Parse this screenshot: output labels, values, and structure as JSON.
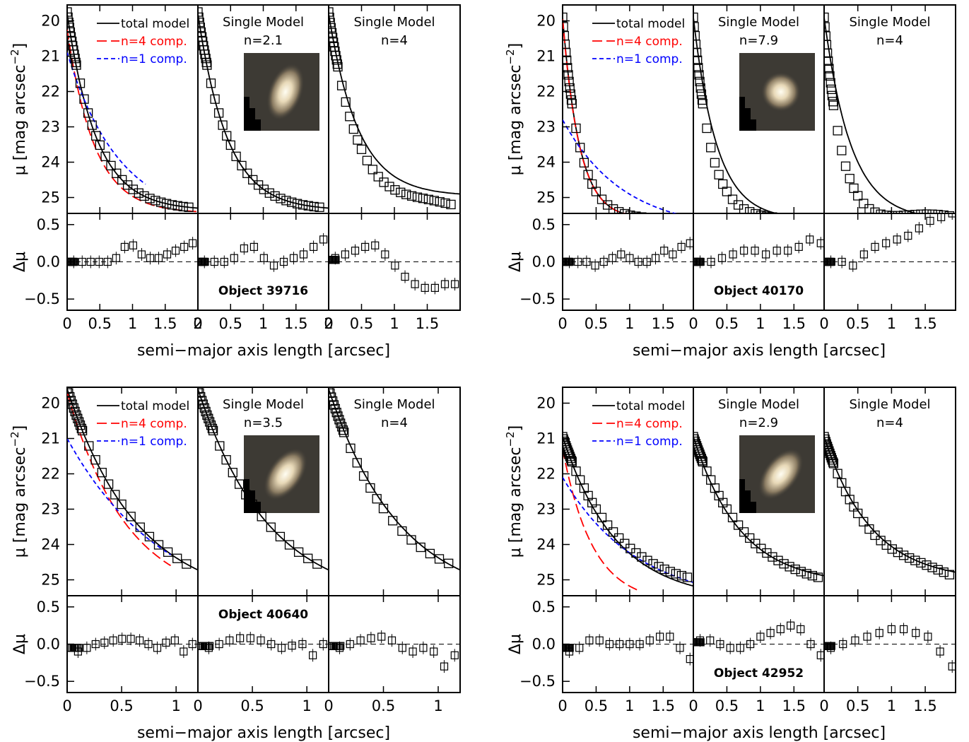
{
  "chart_data": [
    {
      "type": "scatter",
      "object_label": "Object 39716",
      "sersic_n": "2.1",
      "x_ticks": [
        [
          "0",
          "0.5",
          "1",
          "1.5",
          "2"
        ],
        [
          "0",
          "0.5",
          "1",
          "1.5",
          "2"
        ],
        [
          "0",
          "0.5",
          "1",
          "1.5"
        ]
      ],
      "xlim": [
        0,
        2.0
      ],
      "two_component": {
        "series": [
          {
            "name": "total model",
            "color": "#000000",
            "style": "solid",
            "start": 19.8,
            "end": 25.3,
            "bend": 0.45
          },
          {
            "name": "n=4 comp.",
            "color": "#ff0000",
            "style": "long-dash",
            "start": 20.25,
            "end": 25.4,
            "bend": 0.42
          },
          {
            "name": "n=1 comp.",
            "color": "#0000ff",
            "style": "short-dash",
            "start": 20.9,
            "end": 25.3,
            "bend": 0.8,
            "xmax": 1.2
          }
        ]
      },
      "single_fit": {
        "start": 19.8,
        "end": 25.3,
        "bend": 0.45
      },
      "single_n4": {
        "start": 19.8,
        "end": 24.9,
        "bend": 0.45
      },
      "data": {
        "start": 19.75,
        "end": 25.3,
        "bend": 0.45,
        "xmax": 1.92
      },
      "residuals": [
        [
          0.0,
          0.0,
          0.0,
          0.0,
          0.0,
          0.05,
          0.2,
          0.22,
          0.1,
          0.05,
          0.05,
          0.1,
          0.15,
          0.2,
          0.25
        ],
        [
          0.0,
          0.0,
          0.0,
          0.05,
          0.18,
          0.2,
          0.05,
          -0.05,
          0.0,
          0.05,
          0.1,
          0.2,
          0.3
        ],
        [
          0.05,
          0.1,
          0.15,
          0.2,
          0.22,
          0.1,
          -0.05,
          -0.2,
          -0.3,
          -0.35,
          -0.35,
          -0.3,
          -0.3
        ]
      ],
      "inset_image": {
        "hue": "pale-elliptical",
        "tilt": -20
      }
    },
    {
      "type": "scatter",
      "object_label": "Object 40170",
      "sersic_n": "7.9",
      "x_ticks": [
        [
          "0",
          "0.5",
          "1",
          "1.5"
        ],
        [
          "0",
          "0.5",
          "1",
          "1.5"
        ],
        [
          "0",
          "0.5",
          "1",
          "1.5"
        ]
      ],
      "xlim": [
        0,
        1.95
      ],
      "two_component": {
        "series": [
          {
            "name": "total model",
            "color": "#000000",
            "style": "solid",
            "start": 19.9,
            "end": 25.6,
            "bend": 0.25
          },
          {
            "name": "n=4 comp.",
            "color": "#ff0000",
            "style": "long-dash",
            "start": 19.95,
            "end": 25.6,
            "bend": 0.25,
            "xmax": 1.25
          },
          {
            "name": "n=1 comp.",
            "color": "#0000ff",
            "style": "short-dash",
            "start": 22.8,
            "end": 25.6,
            "bend": 0.9
          }
        ]
      },
      "single_fit": {
        "start": 19.9,
        "end": 25.6,
        "bend": 0.35
      },
      "single_n4": {
        "start": 19.9,
        "end": 25.6,
        "bend": 0.4
      },
      "data": {
        "start": 19.9,
        "end": 25.6,
        "bend": 0.25,
        "xmax": 1.9
      },
      "residuals": [
        [
          0.0,
          0.0,
          0.0,
          -0.05,
          0.0,
          0.05,
          0.1,
          0.05,
          0.0,
          0.0,
          0.05,
          0.15,
          0.1,
          0.2,
          0.25
        ],
        [
          0.0,
          0.0,
          0.05,
          0.1,
          0.15,
          0.15,
          0.1,
          0.15,
          0.15,
          0.2,
          0.3,
          0.25
        ],
        [
          0.0,
          0.0,
          -0.05,
          0.1,
          0.2,
          0.25,
          0.3,
          0.35,
          0.45,
          0.55,
          0.6,
          0.65
        ]
      ],
      "inset_image": {
        "hue": "pale-compact",
        "tilt": 0
      }
    },
    {
      "type": "scatter",
      "object_label": "Object 40640",
      "sersic_n": "3.5",
      "x_ticks": [
        [
          "0",
          "0.5",
          "1"
        ],
        [
          "0",
          "0.5",
          "1"
        ],
        [
          "0",
          "0.5",
          "1"
        ]
      ],
      "xlim": [
        0,
        1.2
      ],
      "two_component": {
        "series": [
          {
            "name": "total model",
            "color": "#000000",
            "style": "solid",
            "start": 19.6,
            "end": 25.4,
            "bend": 0.65
          },
          {
            "name": "n=4 comp.",
            "color": "#ff0000",
            "style": "long-dash",
            "start": 19.7,
            "end": 25.5,
            "bend": 0.55,
            "xmax": 0.95
          },
          {
            "name": "n=1 comp.",
            "color": "#0000ff",
            "style": "short-dash",
            "start": 21.0,
            "end": 25.5,
            "bend": 0.9,
            "xmax": 0.95
          }
        ]
      },
      "single_fit": {
        "start": 19.6,
        "end": 25.4,
        "bend": 0.65
      },
      "single_n4": {
        "start": 19.6,
        "end": 25.4,
        "bend": 0.65
      },
      "data": {
        "start": 19.6,
        "end": 25.4,
        "bend": 0.65,
        "xmax": 1.15
      },
      "residuals": [
        [
          -0.1,
          -0.05,
          0.0,
          0.02,
          0.05,
          0.07,
          0.07,
          0.05,
          0.0,
          -0.05,
          0.02,
          0.05,
          -0.1,
          0.0
        ],
        [
          -0.05,
          0.0,
          0.05,
          0.08,
          0.08,
          0.05,
          0.0,
          -0.05,
          -0.02,
          0.0,
          -0.15,
          0.0
        ],
        [
          -0.05,
          0.0,
          0.05,
          0.08,
          0.1,
          0.05,
          -0.05,
          -0.1,
          -0.05,
          -0.1,
          -0.3,
          -0.15
        ]
      ],
      "inset_image": {
        "hue": "pale-disk",
        "tilt": -35
      }
    },
    {
      "type": "scatter",
      "object_label": "Object 42952",
      "sersic_n": "2.9",
      "x_ticks": [
        [
          "0",
          "0.5",
          "1",
          "1.5"
        ],
        [
          "0",
          "0.5",
          "1",
          "1.5"
        ],
        [
          "0",
          "0.5",
          "1",
          "1.5"
        ]
      ],
      "xlim": [
        0,
        1.95
      ],
      "two_component": {
        "series": [
          {
            "name": "total model",
            "color": "#000000",
            "style": "solid",
            "start": 20.95,
            "end": 25.2,
            "bend": 0.8
          },
          {
            "name": "n=4 comp.",
            "color": "#ff0000",
            "style": "long-dash",
            "start": 21.3,
            "end": 25.6,
            "bend": 0.45,
            "xmax": 1.15
          },
          {
            "name": "n=1 comp.",
            "color": "#0000ff",
            "style": "short-dash",
            "start": 22.1,
            "end": 25.1,
            "bend": 1.1
          }
        ]
      },
      "single_fit": {
        "start": 20.95,
        "end": 24.9,
        "bend": 0.7
      },
      "single_n4": {
        "start": 20.95,
        "end": 24.8,
        "bend": 0.7
      },
      "data": {
        "start": 20.95,
        "end": 25.0,
        "bend": 0.8,
        "xmax": 1.9
      },
      "residuals": [
        [
          -0.1,
          -0.05,
          0.05,
          0.05,
          0.0,
          0.0,
          0.0,
          0.0,
          0.05,
          0.1,
          0.1,
          -0.05,
          -0.2
        ],
        [
          0.05,
          0.05,
          0.0,
          -0.05,
          -0.05,
          0.0,
          0.1,
          0.15,
          0.2,
          0.25,
          0.2,
          0.0,
          -0.15
        ],
        [
          -0.05,
          0.0,
          0.05,
          0.1,
          0.15,
          0.2,
          0.2,
          0.15,
          0.1,
          -0.1,
          -0.3
        ]
      ],
      "inset_image": {
        "hue": "pale-disk",
        "tilt": -38
      }
    }
  ],
  "labels": {
    "xlabel": "semi−major axis length [arcsec]",
    "ylabel_top": "μ [mag arcsec",
    "ylabel_exp": "−2",
    "ylabel_close": "]",
    "ylabel_bottom": "Δμ",
    "single_model": "Single Model",
    "n_prefix": "n=",
    "n4": "n=4",
    "mu_ticks": [
      "20",
      "21",
      "22",
      "23",
      "24",
      "25"
    ],
    "res_ticks": [
      "0.5",
      "0.0",
      "−0.5"
    ]
  }
}
